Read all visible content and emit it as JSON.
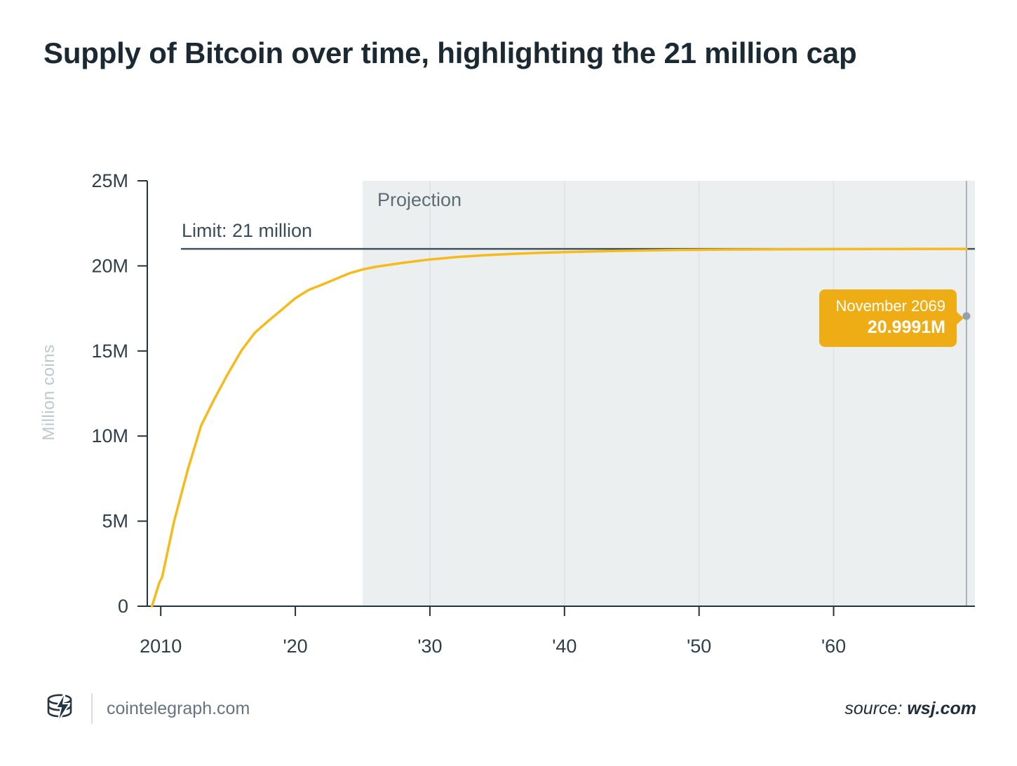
{
  "title": "Supply of Bitcoin over time, highlighting the 21 million cap",
  "colors": {
    "accent_line": "#F6BA1B",
    "tooltip_bg": "#EFAD15",
    "projection_bg": "#ECEFF0",
    "grid_line": "#E0E5E6",
    "limit_line": "#41535F",
    "axis": "#24343E",
    "marker_line": "#A8B3B9",
    "marker_dot": "#93A1A8",
    "title_text": "#1B2933"
  },
  "chart_data": {
    "type": "line",
    "title": "Supply of Bitcoin over time, highlighting the 21 million cap",
    "xlabel": "",
    "ylabel": "Million coins",
    "xlim": [
      2009,
      2070.5
    ],
    "ylim": [
      0,
      25
    ],
    "grid": "vertical-in-projection-only",
    "legend": "none",
    "x_ticks": [
      {
        "value": 2010,
        "label": "2010"
      },
      {
        "value": 2020,
        "label": "'20"
      },
      {
        "value": 2030,
        "label": "'30"
      },
      {
        "value": 2040,
        "label": "'40"
      },
      {
        "value": 2050,
        "label": "'50"
      },
      {
        "value": 2060,
        "label": "'60"
      }
    ],
    "y_ticks": [
      {
        "value": 0,
        "label": "0"
      },
      {
        "value": 5,
        "label": "5M"
      },
      {
        "value": 10,
        "label": "10M"
      },
      {
        "value": 15,
        "label": "15M"
      },
      {
        "value": 20,
        "label": "20M"
      },
      {
        "value": 25,
        "label": "25M"
      }
    ],
    "projection": {
      "start_year": 2025,
      "label": "Projection"
    },
    "limit": {
      "value": 21,
      "label": "Limit: 21 million"
    },
    "series": [
      {
        "name": "Bitcoin supply",
        "unit": "million coins",
        "points": [
          [
            2009.35,
            0
          ],
          [
            2009.9,
            1.4
          ],
          [
            2010.1,
            1.7
          ],
          [
            2011,
            5.02
          ],
          [
            2012,
            8.0
          ],
          [
            2013,
            10.61
          ],
          [
            2014,
            12.2
          ],
          [
            2015,
            13.67
          ],
          [
            2016,
            15.03
          ],
          [
            2017,
            16.08
          ],
          [
            2018,
            16.77
          ],
          [
            2019,
            17.43
          ],
          [
            2020,
            18.1
          ],
          [
            2021,
            18.59
          ],
          [
            2022,
            18.9
          ],
          [
            2023,
            19.23
          ],
          [
            2024,
            19.56
          ],
          [
            2025,
            19.79
          ],
          [
            2026,
            19.95
          ],
          [
            2028,
            20.18
          ],
          [
            2030,
            20.38
          ],
          [
            2032,
            20.52
          ],
          [
            2034,
            20.62
          ],
          [
            2036,
            20.7
          ],
          [
            2038,
            20.76
          ],
          [
            2040,
            20.81
          ],
          [
            2044,
            20.88
          ],
          [
            2048,
            20.93
          ],
          [
            2052,
            20.96
          ],
          [
            2056,
            20.975
          ],
          [
            2060,
            20.985
          ],
          [
            2064,
            20.992
          ],
          [
            2069.87,
            20.9991
          ]
        ]
      }
    ],
    "annotation": {
      "x": 2069.87,
      "value": 20.9991,
      "date_label": "November 2069",
      "value_label": "20.9991M"
    }
  },
  "footer": {
    "site": "cointelegraph.com",
    "source_prefix": "source:",
    "source_name": "wsj.com"
  }
}
